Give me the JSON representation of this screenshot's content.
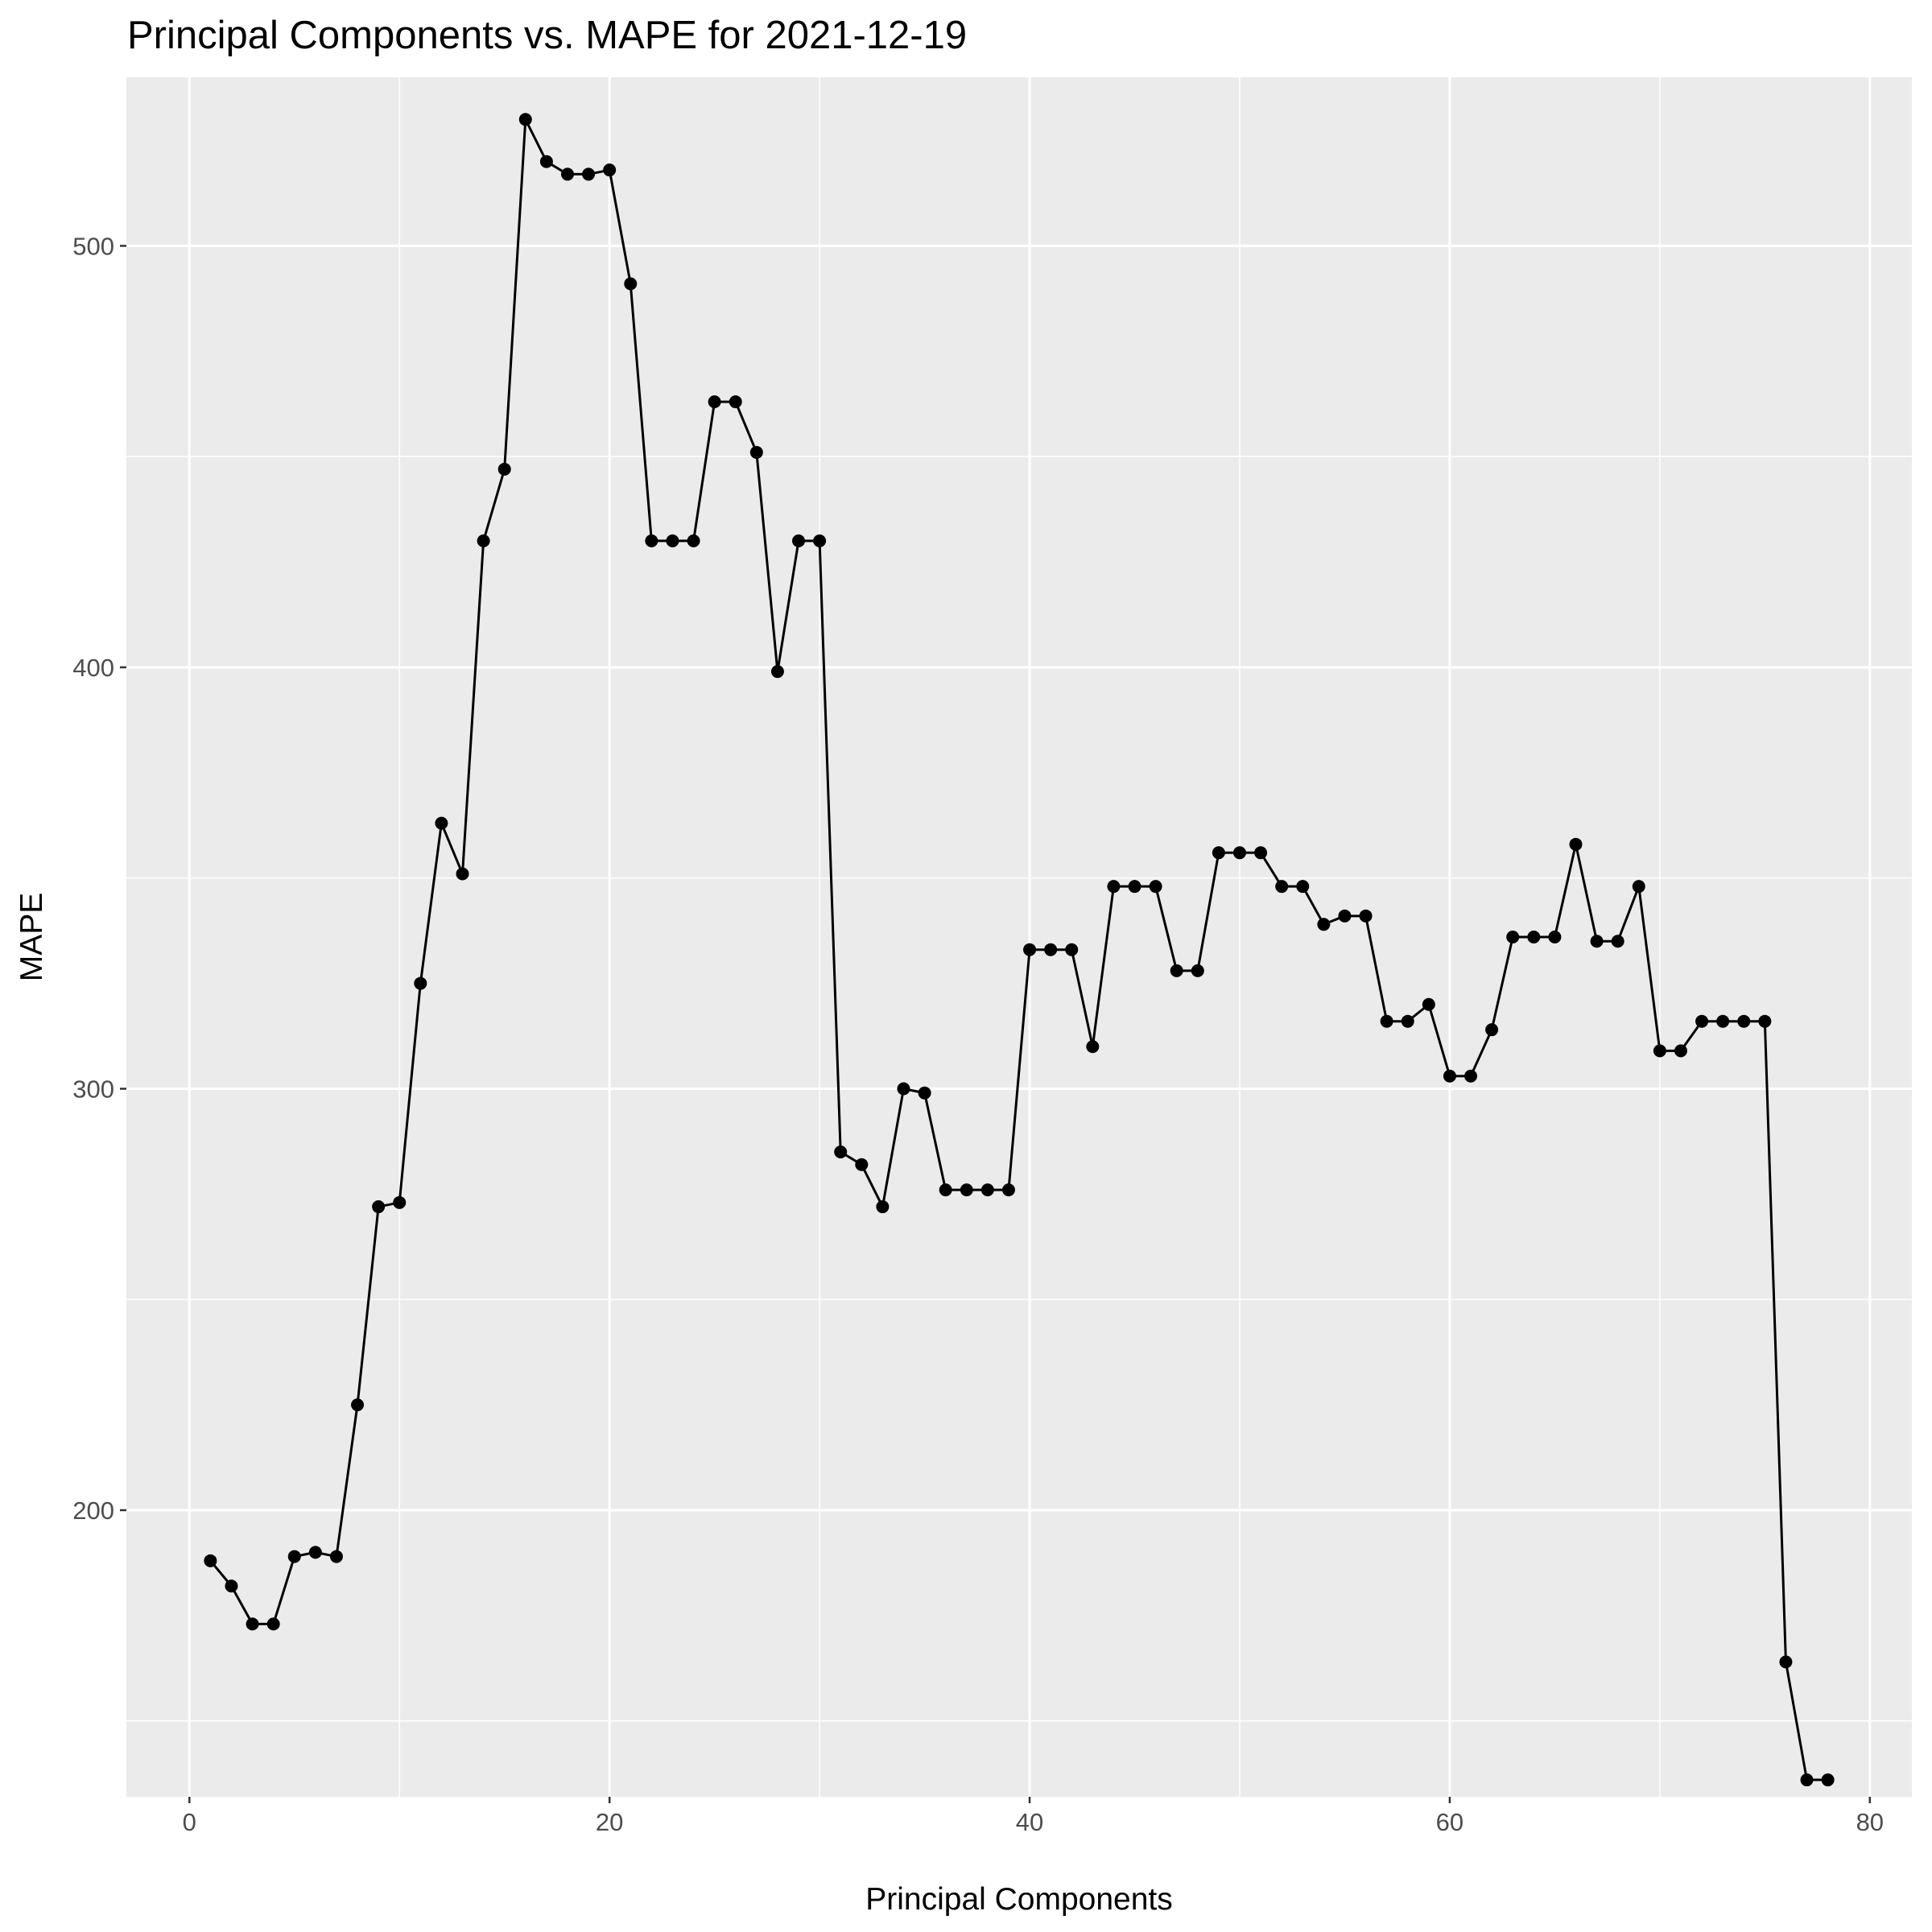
{
  "chart_data": {
    "type": "line",
    "title": "Principal Components vs. MAPE for 2021-12-19",
    "xlabel": "Principal Components",
    "ylabel": "MAPE",
    "xlim": [
      -3,
      82
    ],
    "ylim": [
      132,
      540
    ],
    "x_ticks": [
      0,
      20,
      40,
      60,
      80
    ],
    "y_ticks": [
      200,
      300,
      400,
      500
    ],
    "x_tick_labels": [
      "0",
      "20",
      "40",
      "60",
      "80"
    ],
    "y_tick_labels": [
      "200",
      "300",
      "400",
      "500"
    ],
    "x_minor_ticks": [
      10,
      30,
      50,
      70
    ],
    "y_minor_ticks": [
      150,
      250,
      350,
      450
    ],
    "grid": true,
    "legend": "none",
    "colors": {
      "panel_background": "#ebebeb",
      "grid": "#ffffff",
      "line": "#000000",
      "point": "#000000"
    },
    "series": [
      {
        "x": [
          1,
          2,
          3,
          4,
          5,
          6,
          7,
          8,
          9,
          10,
          11,
          12,
          13,
          14,
          15,
          16,
          17,
          18,
          19,
          20,
          21,
          22,
          23,
          24,
          25,
          26,
          27,
          28,
          29,
          30,
          31,
          32,
          33,
          34,
          35,
          36,
          37,
          38,
          39,
          40,
          41,
          42,
          43,
          44,
          45,
          46,
          47,
          48,
          49,
          50,
          51,
          52,
          53,
          54,
          55,
          56,
          57,
          58,
          59,
          60,
          61,
          62,
          63,
          64,
          65,
          66,
          67,
          68,
          69,
          70,
          71,
          72,
          73,
          74,
          75,
          76,
          77,
          78
        ],
        "values": [
          188,
          182,
          173,
          173,
          189,
          190,
          189,
          225,
          272,
          273,
          325,
          363,
          351,
          430,
          447,
          530,
          520,
          517,
          517,
          518,
          491,
          430,
          430,
          430,
          463,
          463,
          451,
          399,
          430,
          430,
          285,
          282,
          272,
          300,
          299,
          276,
          276,
          276,
          276,
          333,
          333,
          333,
          310,
          348,
          348,
          348,
          328,
          328,
          356,
          356,
          356,
          348,
          348,
          339,
          341,
          341,
          316,
          316,
          320,
          303,
          303,
          314,
          336,
          336,
          336,
          358,
          335,
          335,
          348,
          309,
          309,
          316,
          316,
          316,
          316,
          164,
          136,
          136
        ]
      }
    ]
  }
}
